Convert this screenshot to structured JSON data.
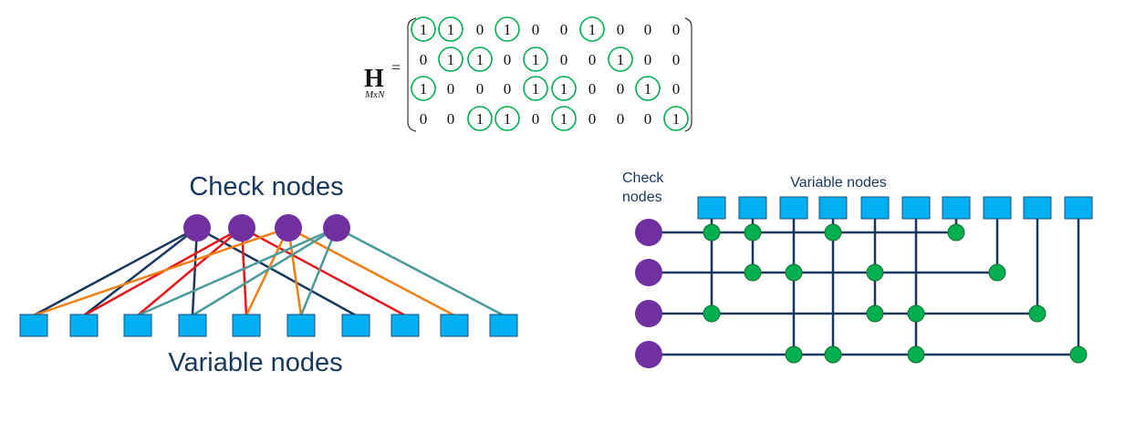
{
  "matrix": {
    "symbol": "H",
    "subscript": "MxN",
    "equals": "=",
    "rows": [
      [
        1,
        1,
        0,
        1,
        0,
        0,
        1,
        0,
        0,
        0
      ],
      [
        0,
        1,
        1,
        0,
        1,
        0,
        0,
        1,
        0,
        0
      ],
      [
        1,
        0,
        0,
        0,
        1,
        1,
        0,
        0,
        1,
        0
      ],
      [
        0,
        0,
        1,
        1,
        0,
        1,
        0,
        0,
        0,
        1
      ]
    ]
  },
  "tanner_graph": {
    "check_label": "Check nodes",
    "variable_label": "Variable nodes",
    "edge_colors": [
      "#17375e",
      "#e8141b",
      "#f07f12",
      "#4a9a9a"
    ]
  },
  "grid_graph": {
    "check_label_line1": "Check",
    "check_label_line2": "nodes",
    "variable_label": "Variable nodes"
  },
  "colors": {
    "check_node": "#7030a0",
    "variable_node": "#00b0f0",
    "variable_node_stroke": "#1f4e79",
    "junction": "#00b050",
    "line": "#17375e",
    "circle_mark": "#00b050"
  }
}
